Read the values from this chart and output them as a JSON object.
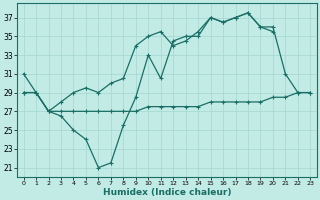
{
  "bg_color": "#c2ebe6",
  "grid_color": "#aad8d3",
  "line_color": "#1a6e65",
  "xlabel": "Humidex (Indice chaleur)",
  "ylim": [
    20,
    38.5
  ],
  "xlim": [
    -0.5,
    23.5
  ],
  "yticks": [
    21,
    23,
    25,
    27,
    29,
    31,
    33,
    35,
    37
  ],
  "xticks": [
    0,
    1,
    2,
    3,
    4,
    5,
    6,
    7,
    8,
    9,
    10,
    11,
    12,
    13,
    14,
    15,
    16,
    17,
    18,
    19,
    20,
    21,
    22,
    23
  ],
  "line1_x": [
    0,
    1,
    2,
    3,
    4,
    5,
    6,
    7,
    8,
    9,
    10,
    11,
    12,
    13,
    14,
    15,
    16,
    17,
    18,
    19,
    20
  ],
  "line1_y": [
    31,
    29,
    27,
    26.5,
    25,
    24,
    21,
    21.5,
    25.5,
    28.5,
    33,
    30.5,
    34.5,
    35,
    35,
    37,
    36.5,
    37,
    37.5,
    36,
    35.5
  ],
  "line2_x": [
    0,
    1,
    2,
    3,
    4,
    5,
    6,
    7,
    8,
    9,
    10,
    11,
    12,
    13,
    14,
    15,
    16,
    17,
    18,
    19,
    20,
    21,
    22,
    23
  ],
  "line2_y": [
    29,
    29,
    27,
    28,
    29,
    29.5,
    29,
    30,
    30.5,
    34,
    35,
    35.5,
    34,
    34.5,
    35.5,
    37,
    36.5,
    37,
    37.5,
    36,
    36,
    31,
    29,
    29
  ],
  "line3_x": [
    0,
    1,
    2,
    3,
    4,
    5,
    6,
    7,
    8,
    9,
    10,
    11,
    12,
    13,
    14,
    15,
    16,
    17,
    18,
    19,
    20,
    21,
    22,
    23
  ],
  "line3_y": [
    29,
    29,
    27,
    27,
    27,
    27,
    27,
    27,
    27,
    27,
    27.5,
    27.5,
    27.5,
    27.5,
    27.5,
    28,
    28,
    28,
    28,
    28,
    28.5,
    28.5,
    29,
    29
  ]
}
